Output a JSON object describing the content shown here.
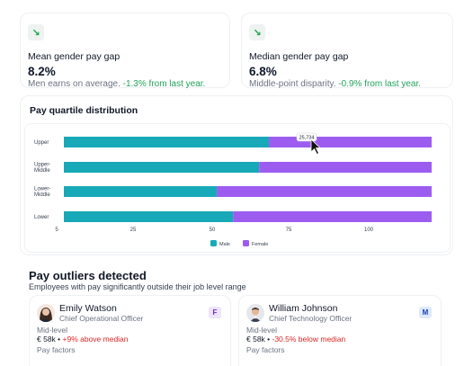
{
  "stats": [
    {
      "title": "Mean gender pay gap",
      "value": "8.2%",
      "desc": "Men earns on average.",
      "change": "-1.3% from last year.",
      "icon": "arrow-down-right-icon"
    },
    {
      "title": "Median gender pay gap",
      "value": "6.8%",
      "desc": "Middle-point disparity.",
      "change": "-0.9% from last year.",
      "icon": "arrow-down-right-icon"
    }
  ],
  "quartile": {
    "title": "Pay quartile distribution",
    "tooltip": "25,734",
    "legend": {
      "male": "Male",
      "female": "Female"
    }
  },
  "chart_data": {
    "type": "bar",
    "orientation": "horizontal",
    "stacked": true,
    "categories": [
      "Upper",
      "Upper-Middle",
      "Lower-Middle",
      "Lower"
    ],
    "series": [
      {
        "name": "Male",
        "values": [
          63,
          60,
          47,
          52
        ]
      },
      {
        "name": "Female",
        "values": [
          50,
          53,
          66,
          61
        ]
      }
    ],
    "xticks": [
      "5",
      "25",
      "50",
      "75",
      "100"
    ],
    "xlim": [
      5,
      118
    ],
    "colors": {
      "male": "#17a9b8",
      "female": "#9d5cf0"
    },
    "legend_position": "bottom"
  },
  "outliers": {
    "title": "Pay outliers detected",
    "subtitle": "Employees with pay significantly outside their job level range",
    "people": [
      {
        "name": "Emily Watson",
        "role": "Chief Operational Officer",
        "gender": "F",
        "level": "Mid-level",
        "salary": "€ 58k",
        "delta": "+9% above median",
        "factors": "Pay factors"
      },
      {
        "name": "William Johnson",
        "role": "Chief Technology Officer",
        "gender": "M",
        "level": "Mid-level",
        "salary": "€ 58k",
        "delta": "-30.5% below median",
        "factors": "Pay factors"
      }
    ]
  }
}
